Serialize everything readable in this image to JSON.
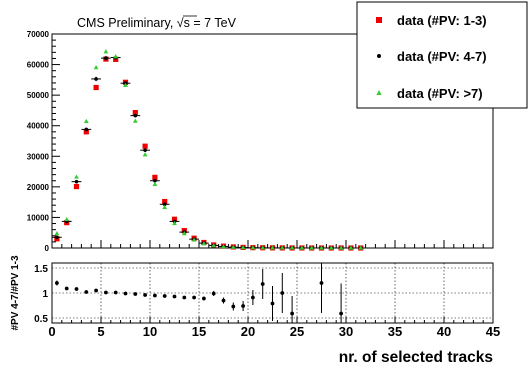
{
  "chart_data": [
    {
      "type": "scatter",
      "panel": "main",
      "title": "CMS Preliminary, √s = 7 TeV",
      "title_prefix": "CMS Preliminary,",
      "title_sqrt": "√s",
      "title_suffix": "= 7 TeV",
      "xlabel": "nr. of selected tracks",
      "ylabel": "",
      "xlim": [
        0,
        45
      ],
      "ylim": [
        0,
        70000
      ],
      "grid": false,
      "legend_position": "top-right",
      "x_ticks": [
        "0",
        "5",
        "10",
        "15",
        "20",
        "25",
        "30",
        "35",
        "40",
        "45"
      ],
      "y_ticks": [
        "0",
        "10000",
        "20000",
        "30000",
        "40000",
        "50000",
        "60000",
        "70000"
      ],
      "x": [
        0.5,
        1.5,
        2.5,
        3.5,
        4.5,
        5.5,
        6.5,
        7.5,
        8.5,
        9.5,
        10.5,
        11.5,
        12.5,
        13.5,
        14.5,
        15.5,
        16.5,
        17.5,
        18.5,
        19.5,
        20.5,
        21.5,
        22.5,
        23.5,
        24.5,
        25.5,
        26.5,
        27.5,
        28.5,
        29.5,
        30.5,
        31.5
      ],
      "series": [
        {
          "name": "data (#PV: 1-3)",
          "color": "#ee0000",
          "marker": "square",
          "values": [
            3000,
            8300,
            20100,
            38000,
            52500,
            61800,
            61700,
            54200,
            44300,
            33300,
            23100,
            15200,
            9400,
            5700,
            3200,
            1800,
            1000,
            600,
            350,
            200,
            120,
            80,
            50,
            30,
            20,
            15,
            10,
            8,
            5,
            4,
            3,
            2
          ]
        },
        {
          "name": "data (#PV: 4-7)",
          "color": "#000000",
          "marker": "circle",
          "values": [
            3500,
            8700,
            21700,
            38800,
            55300,
            62100,
            62300,
            53900,
            43300,
            32000,
            22000,
            14300,
            8700,
            5200,
            2900,
            1600,
            850,
            480,
            260,
            150,
            90,
            60,
            40,
            25,
            18,
            12,
            8,
            6,
            4,
            3,
            2,
            1
          ]
        },
        {
          "name": "data (#PV: >7)",
          "color": "#33cc33",
          "marker": "triangle",
          "values": [
            4700,
            9300,
            23200,
            41400,
            59000,
            64200,
            62600,
            53200,
            41500,
            30500,
            20800,
            13300,
            8000,
            4700,
            2600,
            1400,
            750,
            400,
            220,
            130,
            80,
            50,
            30,
            20,
            14,
            10,
            7,
            5,
            4,
            3,
            2,
            1
          ]
        }
      ]
    },
    {
      "type": "scatter",
      "panel": "ratio",
      "xlabel": "nr. of selected tracks",
      "ylabel": "#PV 4-7/#PV 1-3",
      "xlim": [
        0,
        45
      ],
      "ylim": [
        0.4,
        1.6
      ],
      "grid": true,
      "x_ticks": [
        "0",
        "5",
        "10",
        "15",
        "20",
        "25",
        "30",
        "35",
        "40",
        "45"
      ],
      "y_ticks": [
        "0.5",
        "1",
        "1.5"
      ],
      "points": [
        {
          "x": 0.5,
          "y": 1.2,
          "err": 0.05
        },
        {
          "x": 1.5,
          "y": 1.09,
          "err": 0.02
        },
        {
          "x": 2.5,
          "y": 1.08,
          "err": 0.015
        },
        {
          "x": 3.5,
          "y": 1.02,
          "err": 0.01
        },
        {
          "x": 4.5,
          "y": 1.05,
          "err": 0.01
        },
        {
          "x": 5.5,
          "y": 1.01,
          "err": 0.01
        },
        {
          "x": 6.5,
          "y": 1.01,
          "err": 0.01
        },
        {
          "x": 7.5,
          "y": 0.99,
          "err": 0.01
        },
        {
          "x": 8.5,
          "y": 0.98,
          "err": 0.01
        },
        {
          "x": 9.5,
          "y": 0.96,
          "err": 0.01
        },
        {
          "x": 10.5,
          "y": 0.95,
          "err": 0.01
        },
        {
          "x": 11.5,
          "y": 0.94,
          "err": 0.015
        },
        {
          "x": 12.5,
          "y": 0.93,
          "err": 0.015
        },
        {
          "x": 13.5,
          "y": 0.91,
          "err": 0.02
        },
        {
          "x": 14.5,
          "y": 0.91,
          "err": 0.03
        },
        {
          "x": 15.5,
          "y": 0.89,
          "err": 0.04
        },
        {
          "x": 16.5,
          "y": 0.99,
          "err": 0.05
        },
        {
          "x": 17.5,
          "y": 0.85,
          "err": 0.06
        },
        {
          "x": 18.5,
          "y": 0.73,
          "err": 0.08
        },
        {
          "x": 19.5,
          "y": 0.74,
          "err": 0.1
        },
        {
          "x": 20.5,
          "y": 0.91,
          "err": 0.15
        },
        {
          "x": 21.5,
          "y": 1.18,
          "err": 0.3
        },
        {
          "x": 22.5,
          "y": 0.79,
          "err": 0.35
        },
        {
          "x": 23.5,
          "y": 1.0,
          "err": 0.4
        },
        {
          "x": 24.5,
          "y": 0.59,
          "err": 0.35
        },
        {
          "x": 27.5,
          "y": 1.2,
          "err": 0.6
        },
        {
          "x": 29.5,
          "y": 0.59,
          "err": 0.6
        }
      ]
    }
  ]
}
